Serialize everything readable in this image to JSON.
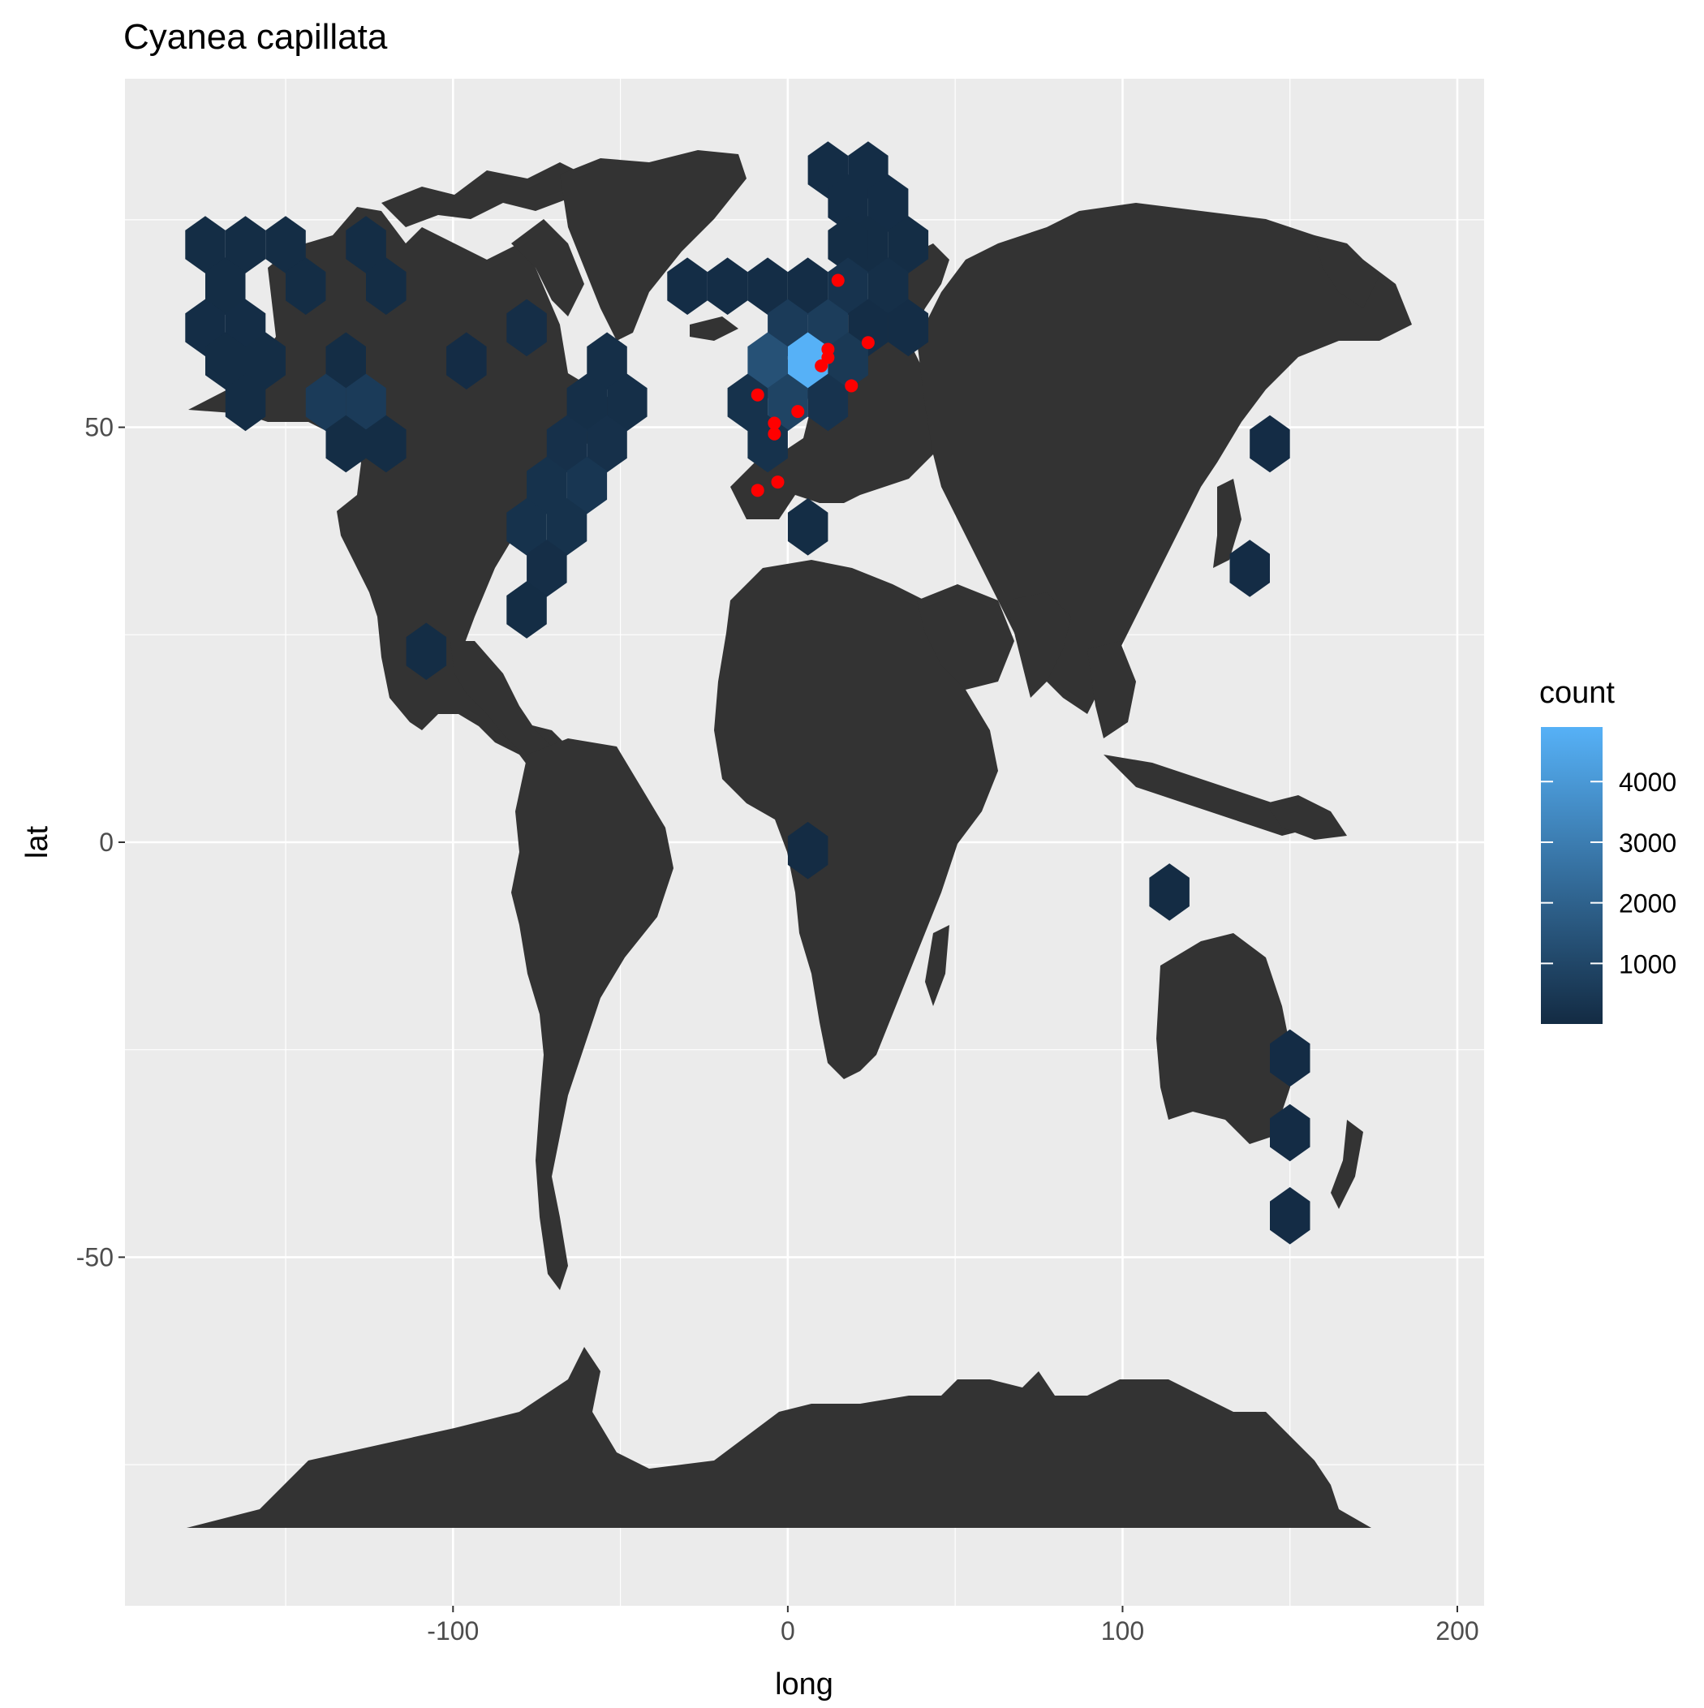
{
  "title": "Cyanea capillata",
  "colors": {
    "panel": "#EBEBEB",
    "grid": "#FFFFFF",
    "land": "#333333",
    "tick_text": "#4D4D4D",
    "point": "#FF0000",
    "scale_low": "#132B43",
    "scale_high": "#56B1F7"
  },
  "chart_data": {
    "type": "map",
    "title": "Cyanea capillata",
    "xlabel": "long",
    "ylabel": "lat",
    "xlim": [
      -198,
      208
    ],
    "ylim": [
      -92,
      92
    ],
    "x_ticks": [
      -100,
      0,
      100,
      200
    ],
    "x_tick_labels": [
      "-100",
      "0",
      "100",
      "200"
    ],
    "y_ticks": [
      -50,
      0,
      50
    ],
    "y_tick_labels": [
      "-50",
      "0",
      "50"
    ],
    "x_minor_grid": [
      -150,
      -50,
      50,
      150
    ],
    "y_minor_grid": [
      -75,
      -25,
      25,
      75
    ],
    "grid": true,
    "legend": {
      "title": "count",
      "placement": "right",
      "range": [
        1,
        4900
      ],
      "breaks": [
        1000,
        2000,
        3000,
        4000
      ],
      "break_labels": [
        "1000",
        "2000",
        "3000",
        "4000"
      ]
    },
    "hex_bins": [
      {
        "long": 12,
        "lat": 81,
        "count": 80
      },
      {
        "long": 24,
        "lat": 81,
        "count": 70
      },
      {
        "long": 18,
        "lat": 77,
        "count": 70
      },
      {
        "long": 30,
        "lat": 77,
        "count": 70
      },
      {
        "long": 24,
        "lat": 72,
        "count": 60
      },
      {
        "long": 36,
        "lat": 72,
        "count": 60
      },
      {
        "long": 18,
        "lat": 72,
        "count": 60
      },
      {
        "long": 30,
        "lat": 67,
        "count": 150
      },
      {
        "long": 18,
        "lat": 67,
        "count": 300
      },
      {
        "long": 6,
        "lat": 67,
        "count": 90
      },
      {
        "long": -6,
        "lat": 67,
        "count": 90
      },
      {
        "long": -18,
        "lat": 67,
        "count": 70
      },
      {
        "long": -30,
        "lat": 67,
        "count": 70
      },
      {
        "long": 24,
        "lat": 62,
        "count": 90
      },
      {
        "long": 36,
        "lat": 62,
        "count": 80
      },
      {
        "long": 12,
        "lat": 62,
        "count": 650
      },
      {
        "long": 0,
        "lat": 62,
        "count": 600
      },
      {
        "long": 18,
        "lat": 58,
        "count": 500
      },
      {
        "long": 6,
        "lat": 58,
        "count": 4900
      },
      {
        "long": -6,
        "lat": 58,
        "count": 1400
      },
      {
        "long": 0,
        "lat": 53,
        "count": 900
      },
      {
        "long": 12,
        "lat": 53,
        "count": 300
      },
      {
        "long": -12,
        "lat": 53,
        "count": 250
      },
      {
        "long": -6,
        "lat": 48,
        "count": 250
      },
      {
        "long": 6,
        "lat": 38,
        "count": 60
      },
      {
        "long": 6,
        "lat": -1,
        "count": 40
      },
      {
        "long": -162,
        "lat": 72,
        "count": 60
      },
      {
        "long": -150,
        "lat": 72,
        "count": 60
      },
      {
        "long": -174,
        "lat": 72,
        "count": 60
      },
      {
        "long": -168,
        "lat": 67,
        "count": 60
      },
      {
        "long": -144,
        "lat": 67,
        "count": 60
      },
      {
        "long": -174,
        "lat": 62,
        "count": 80
      },
      {
        "long": -162,
        "lat": 62,
        "count": 80
      },
      {
        "long": -168,
        "lat": 58,
        "count": 60
      },
      {
        "long": -156,
        "lat": 58,
        "count": 60
      },
      {
        "long": -162,
        "lat": 53,
        "count": 60
      },
      {
        "long": -126,
        "lat": 72,
        "count": 60
      },
      {
        "long": -120,
        "lat": 67,
        "count": 60
      },
      {
        "long": -132,
        "lat": 58,
        "count": 60
      },
      {
        "long": -138,
        "lat": 53,
        "count": 600
      },
      {
        "long": -126,
        "lat": 53,
        "count": 600
      },
      {
        "long": -132,
        "lat": 48,
        "count": 60
      },
      {
        "long": -120,
        "lat": 48,
        "count": 60
      },
      {
        "long": -96,
        "lat": 58,
        "count": 50
      },
      {
        "long": -78,
        "lat": 62,
        "count": 120
      },
      {
        "long": -54,
        "lat": 58,
        "count": 150
      },
      {
        "long": -60,
        "lat": 53,
        "count": 150
      },
      {
        "long": -48,
        "lat": 53,
        "count": 150
      },
      {
        "long": -66,
        "lat": 48,
        "count": 200
      },
      {
        "long": -54,
        "lat": 48,
        "count": 200
      },
      {
        "long": -72,
        "lat": 43,
        "count": 250
      },
      {
        "long": -60,
        "lat": 43,
        "count": 400
      },
      {
        "long": -78,
        "lat": 38,
        "count": 250
      },
      {
        "long": -66,
        "lat": 38,
        "count": 250
      },
      {
        "long": -72,
        "lat": 33,
        "count": 120
      },
      {
        "long": -78,
        "lat": 28,
        "count": 60
      },
      {
        "long": -108,
        "lat": 23,
        "count": 60
      },
      {
        "long": 144,
        "lat": 48,
        "count": 50
      },
      {
        "long": 138,
        "lat": 33,
        "count": 50
      },
      {
        "long": 114,
        "lat": -6,
        "count": 40
      },
      {
        "long": 150,
        "lat": -26,
        "count": 50
      },
      {
        "long": 150,
        "lat": -35,
        "count": 50
      },
      {
        "long": 150,
        "lat": -45,
        "count": 50
      }
    ],
    "points": [
      {
        "long": 15,
        "lat": 67.7
      },
      {
        "long": 24,
        "lat": 60.2
      },
      {
        "long": 12,
        "lat": 59.4
      },
      {
        "long": 12,
        "lat": 58.4
      },
      {
        "long": 10,
        "lat": 57.4
      },
      {
        "long": 19,
        "lat": 55.0
      },
      {
        "long": -9,
        "lat": 53.9
      },
      {
        "long": 3,
        "lat": 51.9
      },
      {
        "long": -4,
        "lat": 50.5
      },
      {
        "long": -4,
        "lat": 49.2
      },
      {
        "long": -3,
        "lat": 43.4
      },
      {
        "long": -9,
        "lat": 42.4
      }
    ]
  }
}
